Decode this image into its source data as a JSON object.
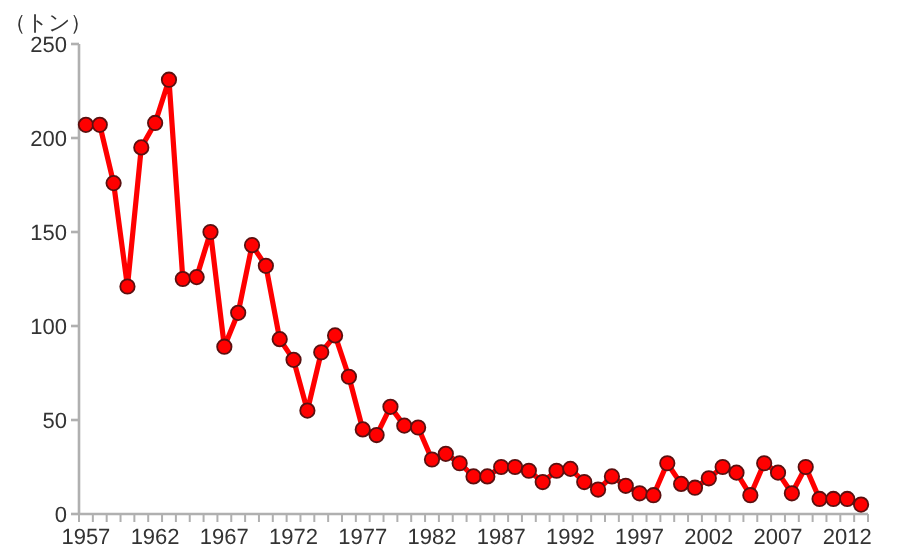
{
  "chart_data": {
    "type": "line",
    "ylabel": "（トン）",
    "categories": [
      "1957",
      null,
      null,
      null,
      null,
      "1962",
      null,
      null,
      null,
      null,
      "1967",
      null,
      null,
      null,
      null,
      "1972",
      null,
      null,
      null,
      null,
      "1977",
      null,
      null,
      null,
      null,
      "1982",
      null,
      null,
      null,
      null,
      "1987",
      null,
      null,
      null,
      null,
      "1992",
      null,
      null,
      null,
      null,
      "1997",
      null,
      null,
      null,
      null,
      "2002",
      null,
      null,
      null,
      null,
      "2007",
      null,
      null,
      null,
      null,
      "2012",
      null
    ],
    "series": [
      {
        "color": "#ff0000",
        "values": [
          207,
          207,
          176,
          121,
          195,
          208,
          231,
          125,
          126,
          150,
          89,
          107,
          143,
          132,
          93,
          82,
          55,
          86,
          95,
          73,
          45,
          42,
          57,
          47,
          46,
          29,
          32,
          27,
          20,
          20,
          25,
          25,
          23,
          17,
          23,
          24,
          17,
          13,
          20,
          15,
          11,
          10,
          27,
          16,
          14,
          19,
          25,
          22,
          10,
          27,
          22,
          11,
          25,
          8,
          8,
          8,
          5
        ]
      }
    ],
    "ylim": [
      0,
      250
    ],
    "yticks": [
      0,
      50,
      100,
      150,
      200,
      250
    ],
    "grid": false,
    "marker": "circle",
    "line_style": "solid"
  }
}
